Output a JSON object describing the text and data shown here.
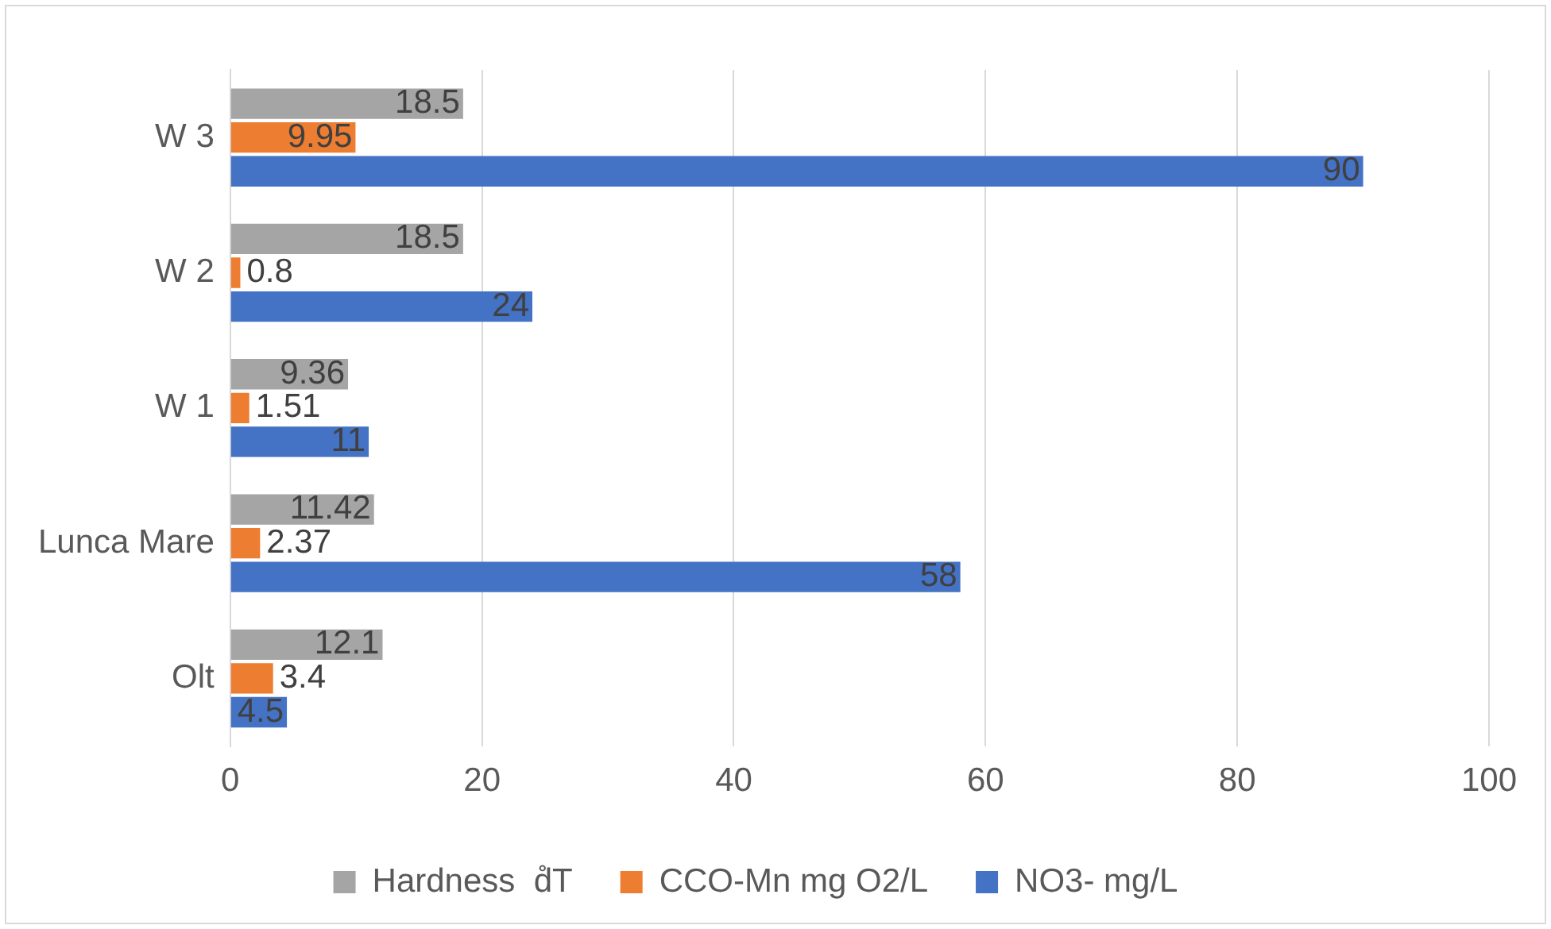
{
  "chart_data": {
    "type": "bar",
    "orientation": "horizontal",
    "categories": [
      "W 3",
      "W 2",
      "W 1",
      "Lunca Mare",
      "Olt"
    ],
    "series": [
      {
        "name": "Hardness  d̊T",
        "color": "#a5a5a5",
        "values": [
          18.5,
          18.5,
          9.36,
          11.42,
          12.1
        ]
      },
      {
        "name": "CCO-Mn mg O2/L",
        "color": "#ed7d31",
        "values": [
          9.95,
          0.8,
          1.51,
          2.37,
          3.4
        ]
      },
      {
        "name": "NO3- mg/L",
        "color": "#4472c4",
        "values": [
          90,
          24,
          11,
          58,
          4.5
        ]
      }
    ],
    "xlim": [
      0,
      100
    ],
    "xticks": [
      0,
      20,
      40,
      60,
      80,
      100
    ],
    "grid": "x",
    "legend": "bottom",
    "data_labels": true
  }
}
